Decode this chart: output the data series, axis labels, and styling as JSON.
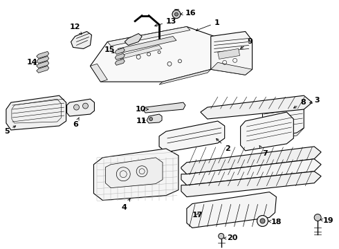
{
  "bg_color": "#ffffff",
  "line_color": "#000000",
  "label_color": "#000000",
  "lw": 0.8,
  "fig_w": 4.9,
  "fig_h": 3.6,
  "dpi": 100
}
